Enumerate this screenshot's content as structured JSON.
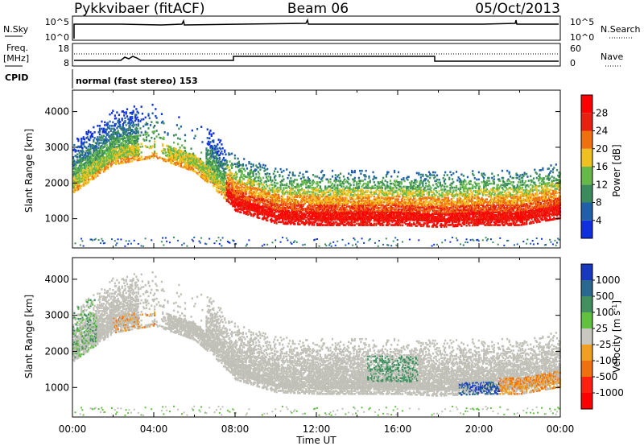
{
  "header": {
    "title": "Pykkvibaer (fitACF)",
    "beam": "Beam 06",
    "date": "05/Oct/2013"
  },
  "params": {
    "nsky_label": "N.Sky",
    "nsky_ticks": [
      "10^5",
      "10^0"
    ],
    "nsearch_label": "N.Search",
    "nsearch_ticks": [
      "10^5",
      "10^0"
    ],
    "freq_label_1": "Freq.",
    "freq_label_2": "[MHz]",
    "freq_ticks": [
      "18",
      "8"
    ],
    "nave_label": "Nave",
    "nave_ticks": [
      "60",
      "0"
    ],
    "cpid_label": "CPID",
    "cpid_text": "normal (fast stereo) 153"
  },
  "chart_data": [
    {
      "type": "heatmap",
      "name": "power",
      "ylabel": "Slant Range [km]",
      "ylim": [
        180,
        4600
      ],
      "yticks": [
        "1000",
        "2000",
        "3000",
        "4000"
      ],
      "ytick_values": [
        1000,
        2000,
        3000,
        4000
      ],
      "colorbar_label": "Power [dB]",
      "colorbar_ticks": [
        "4",
        "8",
        "12",
        "16",
        "20",
        "24",
        "28"
      ],
      "colorbar_colors": [
        "#1030e0",
        "#2060a8",
        "#3a8c5c",
        "#66b848",
        "#f0c020",
        "#f07010",
        "#e82010",
        "#ff0000"
      ],
      "echo_band": [
        {
          "t": 0.0,
          "range": 1900
        },
        {
          "t": 2.0,
          "range": 2700
        },
        {
          "t": 4.0,
          "range": 2900
        },
        {
          "t": 6.0,
          "range": 2500
        },
        {
          "t": 7.0,
          "range": 2000
        },
        {
          "t": 8.0,
          "range": 1400
        },
        {
          "t": 10.0,
          "range": 1050
        },
        {
          "t": 12.0,
          "range": 1000
        },
        {
          "t": 14.0,
          "range": 1000
        },
        {
          "t": 16.0,
          "range": 1000
        },
        {
          "t": 18.0,
          "range": 950
        },
        {
          "t": 20.0,
          "range": 1000
        },
        {
          "t": 22.0,
          "range": 1000
        },
        {
          "t": 24.0,
          "range": 1200
        }
      ]
    },
    {
      "type": "heatmap",
      "name": "velocity",
      "xlabel": "Time UT",
      "ylabel": "Slant Range [km]",
      "xlim": [
        0,
        24
      ],
      "xticks": [
        "00:00",
        "04:00",
        "08:00",
        "12:00",
        "16:00",
        "20:00",
        "00:00"
      ],
      "ylim": [
        180,
        4600
      ],
      "yticks": [
        "1000",
        "2000",
        "3000",
        "4000"
      ],
      "ytick_values": [
        1000,
        2000,
        3000,
        4000
      ],
      "colorbar_label": "Velocity [m s",
      "colorbar_label_sup": "-1",
      "colorbar_ticks": [
        "1000",
        "500",
        "100",
        "25",
        "-25",
        "-100",
        "-500",
        "-1000"
      ],
      "colorbar_colors": [
        "#1838c0",
        "#2a6890",
        "#409060",
        "#60c040",
        "#c8c8c0",
        "#f0a020",
        "#f07010",
        "#ff2010",
        "#ff0000"
      ]
    }
  ],
  "colors": {
    "ground_scatter": "#c0c0b8"
  }
}
